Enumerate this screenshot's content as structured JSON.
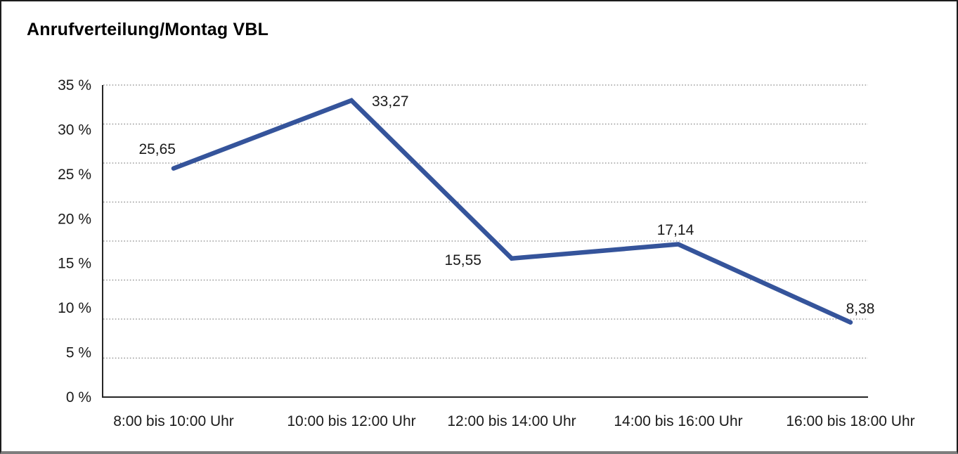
{
  "window": {
    "background": "#ffffff",
    "frame_border_color": "#1c1c1c",
    "frame_bottom_color": "#7d7d7d"
  },
  "chart_data": {
    "type": "line",
    "title": "Anrufverteilung/Montag VBL",
    "categories": [
      "8:00 bis 10:00 Uhr",
      "10:00 bis 12:00 Uhr",
      "12:00 bis 14:00 Uhr",
      "14:00 bis 16:00 Uhr",
      "16:00 bis 18:00 Uhr"
    ],
    "values": [
      25.65,
      33.27,
      15.55,
      17.14,
      8.38
    ],
    "value_labels": [
      "25,65",
      "33,27",
      "15,55",
      "17,14",
      "8,38"
    ],
    "xlabel": "",
    "ylabel": "",
    "ylim": [
      0,
      35
    ],
    "y_tick_values": [
      35,
      30,
      25,
      20,
      15,
      10,
      5,
      0
    ],
    "y_tick_labels": [
      "35 %",
      "30 %",
      "25 %",
      "20 %",
      "15 %",
      "10 %",
      "5 %",
      "0 %"
    ],
    "grid": "horizontal dotted, 8 equal divisions",
    "gridline_divisions": 8,
    "legend_position": "none",
    "line_color": "#35549B",
    "text_color": "#1a1a1a",
    "gridline_color": "#8a8a8a",
    "axis_color": "#262626",
    "plot_background": "#ffffff"
  }
}
